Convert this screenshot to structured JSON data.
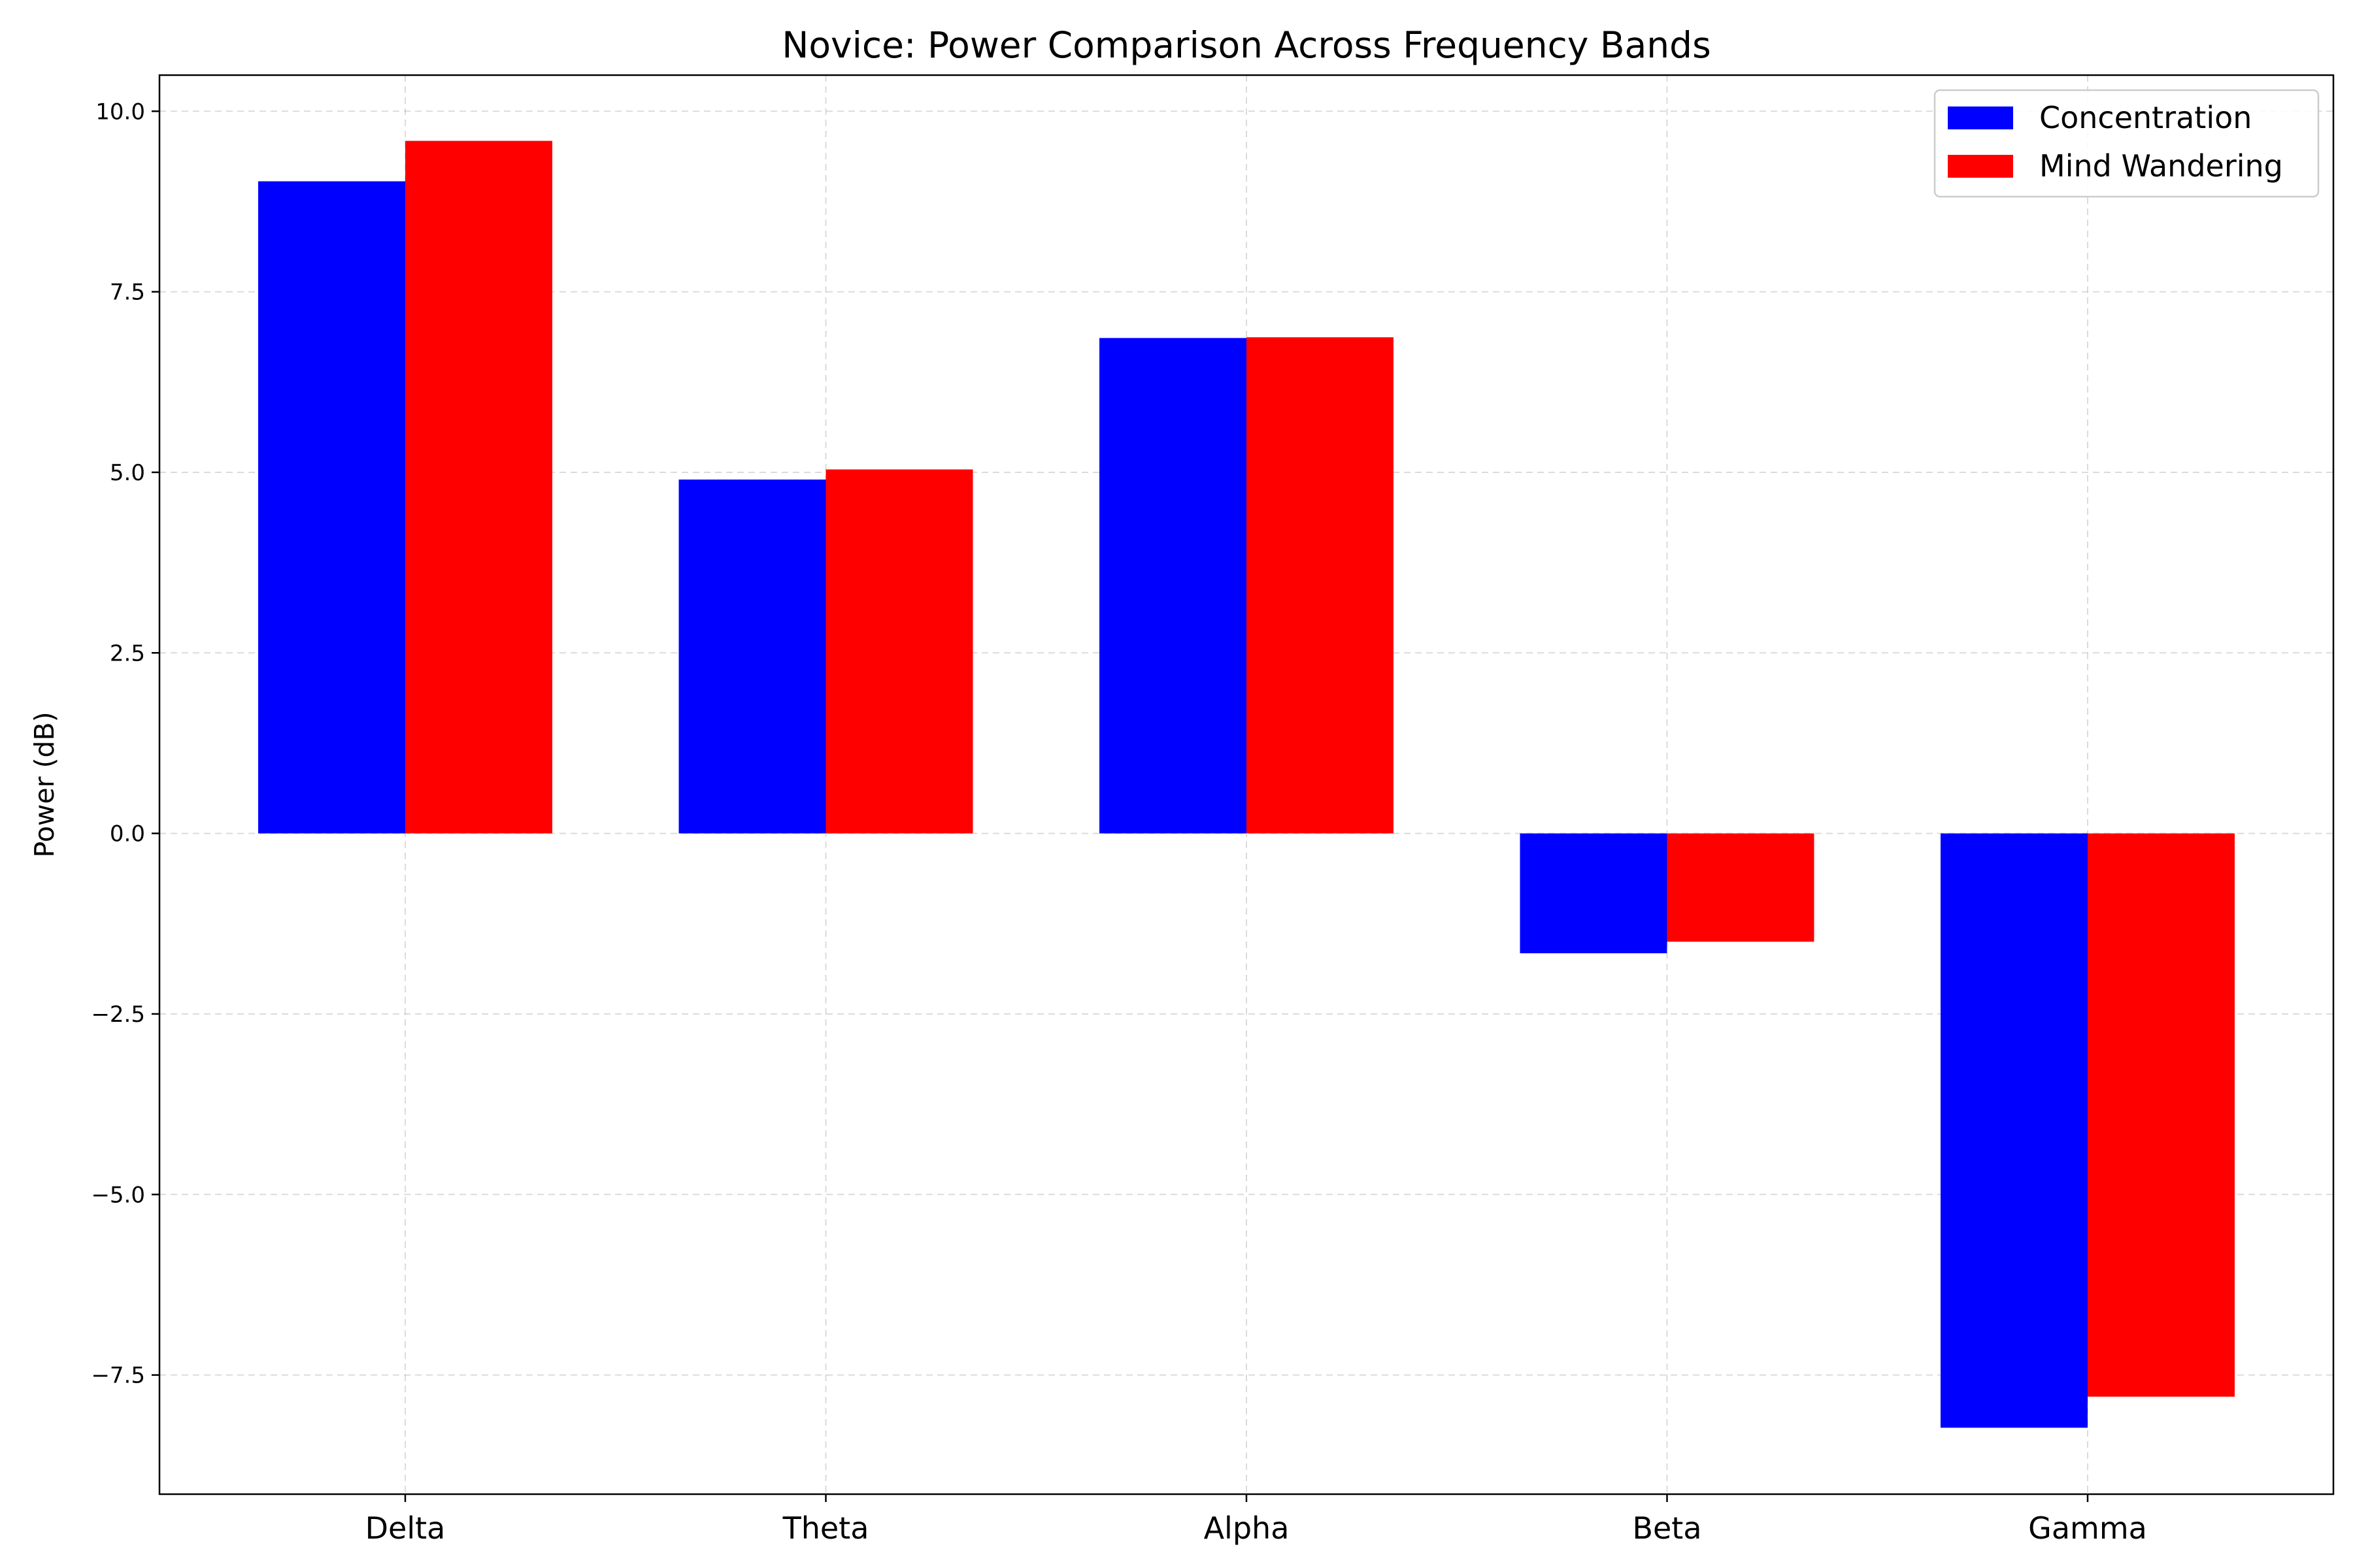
{
  "chart_data": {
    "type": "bar",
    "title": "Novice: Power Comparison Across Frequency Bands",
    "xlabel": "",
    "ylabel": "Power (dB)",
    "categories": [
      "Delta",
      "Theta",
      "Alpha",
      "Beta",
      "Gamma"
    ],
    "series": [
      {
        "name": "Concentration",
        "color": "#0000ff",
        "values": [
          9.03,
          4.9,
          6.86,
          -1.66,
          -8.23
        ]
      },
      {
        "name": "Mind Wandering",
        "color": "#ff0000",
        "values": [
          9.59,
          5.04,
          6.87,
          -1.5,
          -7.8
        ]
      }
    ],
    "ylim": [
      -9.15,
      10.5
    ],
    "yticks": [
      -7.5,
      -5.0,
      -2.5,
      0.0,
      2.5,
      5.0,
      7.5,
      10.0
    ],
    "ytick_labels": [
      "−7.5",
      "−5.0",
      "−2.5",
      "0.0",
      "2.5",
      "5.0",
      "7.5",
      "10.0"
    ],
    "grid": true,
    "legend_position": "top-right"
  }
}
